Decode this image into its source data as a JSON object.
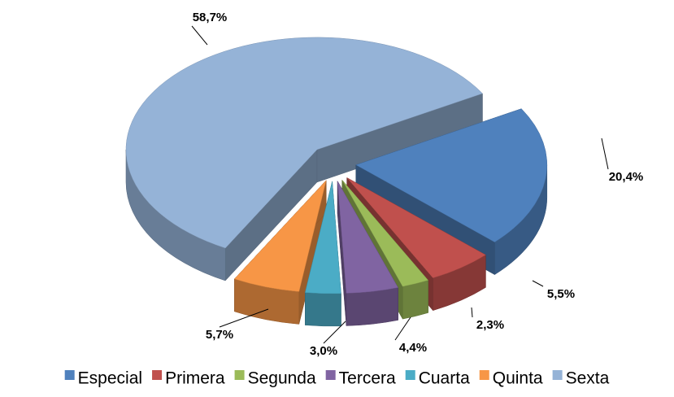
{
  "chart_data": {
    "type": "pie",
    "categories": [
      "Especial",
      "Primera",
      "Segunda",
      "Tercera",
      "Cuarta",
      "Quinta",
      "Sexta"
    ],
    "values": [
      20.4,
      5.5,
      2.3,
      4.4,
      3.0,
      5.7,
      58.7
    ],
    "value_labels": [
      "20,4%",
      "5,5%",
      "2,3%",
      "4,4%",
      "3,0%",
      "5,7%",
      "58,7%"
    ],
    "colors": [
      "#4f81bd",
      "#c0504d",
      "#9bbb59",
      "#8064a2",
      "#4bacc6",
      "#f79646",
      "#95b3d7"
    ],
    "legend": "bottom"
  }
}
